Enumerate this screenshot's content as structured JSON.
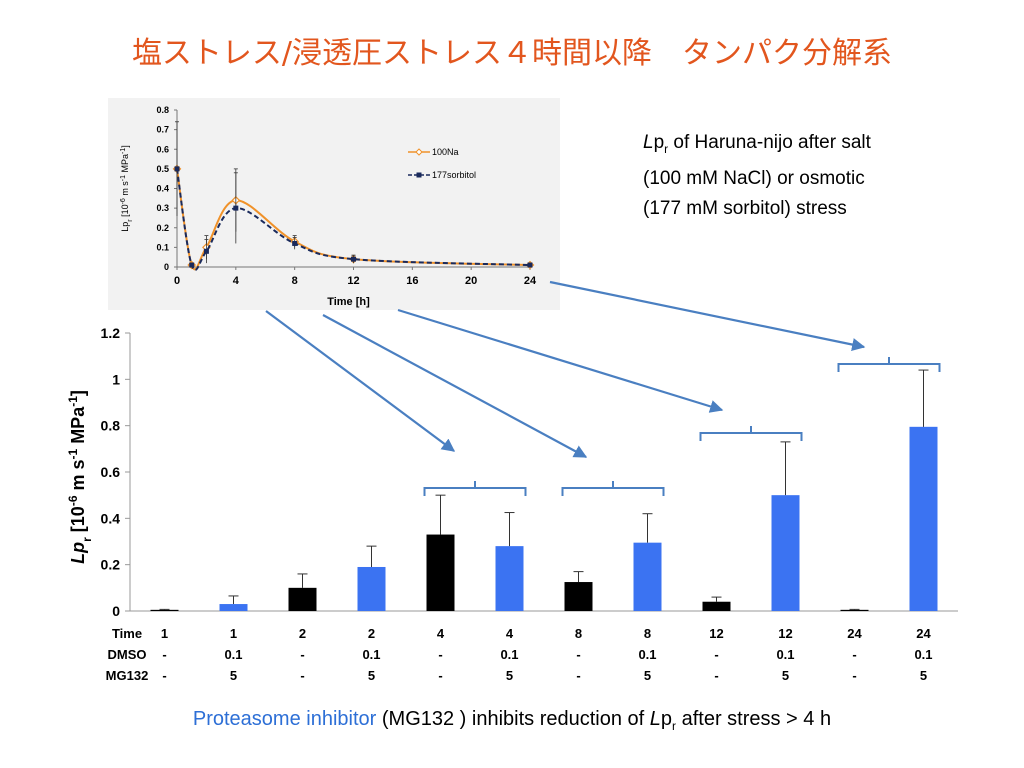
{
  "slide": {
    "title": "塩ストレス/浸透圧ストレス４時間以降　タンパク分解系"
  },
  "description": {
    "line1_symbol": "L",
    "line1_symbol_rest": "p",
    "line1_sub": "r",
    "line1_rest": " of Haruna-nijo after salt",
    "line2": "(100 mM NaCl)  or osmotic",
    "line3": "(177 mM sorbitol) stress"
  },
  "footer": {
    "highlight": "Proteasome inhibitor",
    "mid": " (MG132 ) inhibits reduction of ",
    "symbol": "L",
    "symbol_rest": "p",
    "sub": "r",
    "end": " after stress > 4 h"
  },
  "colors": {
    "title": "#e2561e",
    "nacl_line": "#f0922a",
    "sorbitol_line": "#1a2a5c",
    "control_bar": "#000000",
    "inhibitor_bar": "#3b73f2",
    "arrow": "#4a7fc1",
    "footer_highlight": "#2d6fd6"
  },
  "chart_data": [
    {
      "type": "line",
      "ylabel_main": "Lp",
      "ylabel_sub": "r",
      "ylabel_rest": "  [10",
      "ylabel_exp1": "-6",
      "ylabel_mid": " m s",
      "ylabel_exp2": "-1",
      "ylabel_mid2": " MPa",
      "ylabel_exp3": "-1",
      "ylabel_end": "]",
      "xlabel": "Time [h]",
      "x_ticks": [
        "0",
        "4",
        "8",
        "12",
        "16",
        "20",
        "24"
      ],
      "y_ticks": [
        "0",
        "0.1",
        "0.2",
        "0.3",
        "0.4",
        "0.5",
        "0.6",
        "0.7",
        "0.8"
      ],
      "xlim": [
        0,
        24
      ],
      "ylim": [
        0,
        0.8
      ],
      "series": [
        {
          "name": "100Na",
          "x": [
            0,
            1,
            2,
            4,
            8,
            12,
            24
          ],
          "y": [
            0.5,
            0.01,
            0.1,
            0.34,
            0.13,
            0.04,
            0.01
          ],
          "err": [
            0,
            0.01,
            0.06,
            0.16,
            0.03,
            0.02,
            0.01
          ]
        },
        {
          "name": "177sorbitol",
          "x": [
            0,
            1,
            2,
            4,
            8,
            12,
            24
          ],
          "y": [
            0.5,
            0.01,
            0.08,
            0.3,
            0.12,
            0.04,
            0.01
          ],
          "err": [
            0.24,
            0.01,
            0.06,
            0.18,
            0.03,
            0.02,
            0.01
          ]
        }
      ]
    },
    {
      "type": "bar",
      "ylabel_main": "Lp",
      "ylabel_sub": "r",
      "ylabel_rest": "  [10",
      "ylabel_exp1": "-6",
      "ylabel_mid": " m s",
      "ylabel_exp2": "-1",
      "ylabel_mid2": " MPa",
      "ylabel_exp3": "-1",
      "ylabel_end": "]",
      "y_ticks": [
        "0",
        "0.2",
        "0.4",
        "0.6",
        "0.8",
        "1",
        "1.2"
      ],
      "ylim": [
        0,
        1.2
      ],
      "row_labels": [
        "Time",
        "DMSO",
        "MG132"
      ],
      "time": [
        "1",
        "1",
        "2",
        "2",
        "4",
        "4",
        "8",
        "8",
        "12",
        "12",
        "24",
        "24"
      ],
      "dmso": [
        "-",
        "0.1",
        "-",
        "0.1",
        "-",
        "0.1",
        "-",
        "0.1",
        "-",
        "0.1",
        "-",
        "0.1"
      ],
      "mg132": [
        "-",
        "5",
        "-",
        "5",
        "-",
        "5",
        "-",
        "5",
        "-",
        "5",
        "-",
        "5"
      ],
      "values": [
        0.005,
        0.03,
        0.1,
        0.19,
        0.33,
        0.28,
        0.125,
        0.295,
        0.04,
        0.5,
        0.005,
        0.795
      ],
      "errors": [
        0.002,
        0.035,
        0.06,
        0.09,
        0.17,
        0.145,
        0.045,
        0.125,
        0.02,
        0.23,
        0.002,
        0.245
      ],
      "group": [
        "control",
        "inhibitor",
        "control",
        "inhibitor",
        "control",
        "inhibitor",
        "control",
        "inhibitor",
        "control",
        "inhibitor",
        "control",
        "inhibitor"
      ]
    }
  ]
}
